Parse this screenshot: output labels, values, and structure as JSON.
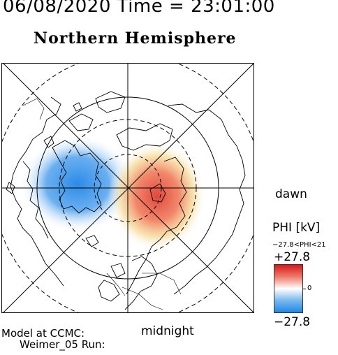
{
  "header": {
    "datetime": "06/08/2020 Time = 23:01:00",
    "hemisphere": "Northern Hemisphere"
  },
  "map": {
    "direction_dawn": "dawn",
    "direction_midnight": "midnight",
    "positive_cell_color": "#e0483d",
    "negative_cell_color": "#2b8be8"
  },
  "legend": {
    "title": "PHI [kV]",
    "range_text": "−27.8<PHI<21",
    "max_label": "+27.8",
    "zero_label": "0",
    "min_label": "−27.8",
    "colors": {
      "max": "#d7191c",
      "mid": "#ffffff",
      "min": "#1e88e5"
    }
  },
  "footer": {
    "model_line1": "Model at CCMC:",
    "model_line2": "Weimer_05 Run:"
  }
}
